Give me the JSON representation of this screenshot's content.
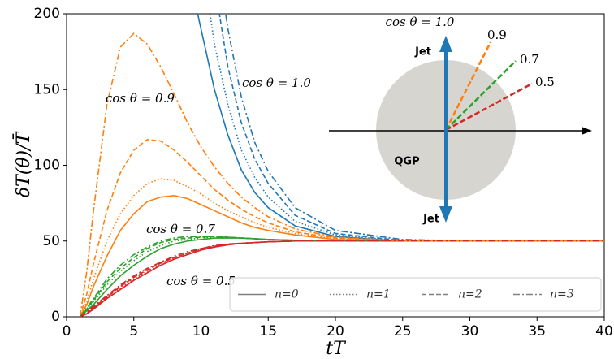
{
  "chart_data": {
    "type": "line",
    "xlabel": "tT",
    "ylabel": "δT(θ)/T̄",
    "xlim": [
      0,
      40
    ],
    "xticks": [
      0,
      5,
      10,
      15,
      20,
      25,
      30,
      35,
      40
    ],
    "ylim": [
      0,
      200
    ],
    "yticks": [
      0,
      50,
      100,
      150,
      200
    ],
    "legend_loc": "lower right",
    "x": [
      1,
      1.5,
      2,
      3,
      4,
      5,
      6,
      7,
      8,
      9,
      10,
      11,
      12,
      13,
      14,
      15,
      17,
      20,
      25,
      30,
      35,
      40
    ],
    "groups": [
      {
        "label": "cos θ = 1.0",
        "color": "#1f77b4"
      },
      {
        "label": "cos θ = 0.9",
        "color": "#ff7f0e"
      },
      {
        "label": "cos θ = 0.7",
        "color": "#2ca02c"
      },
      {
        "label": "cos θ = 0.5",
        "color": "#d62728"
      }
    ],
    "series": [
      {
        "name": "n=0",
        "color": "#808080",
        "dash": "solid",
        "curves": [
          [
            null,
            null,
            null,
            null,
            null,
            null,
            null,
            null,
            null,
            230,
            190,
            150,
            120,
            97,
            82,
            72,
            60,
            53,
            50,
            50,
            50,
            50
          ],
          [
            0,
            8,
            20,
            40,
            57,
            68,
            76,
            79,
            80,
            78,
            74,
            70,
            66,
            62,
            59,
            57,
            54,
            51,
            50,
            50,
            50,
            50
          ],
          [
            0,
            4,
            8,
            18,
            27,
            34,
            40,
            45,
            48,
            50,
            51,
            52,
            52,
            52,
            51.5,
            51,
            50.5,
            50,
            50,
            50,
            50,
            50
          ],
          [
            0,
            2,
            5,
            12,
            18,
            24,
            29,
            34,
            38,
            41,
            44,
            46,
            47.5,
            48.5,
            49,
            49.5,
            50,
            50,
            50,
            50,
            50,
            50
          ]
        ]
      },
      {
        "name": "n=1",
        "color": "#808080",
        "dash": "dotted",
        "curves": [
          [
            null,
            null,
            null,
            null,
            null,
            null,
            null,
            null,
            null,
            null,
            240,
            180,
            140,
            110,
            92,
            79,
            63,
            54,
            50,
            50,
            50,
            50
          ],
          [
            0,
            10,
            25,
            50,
            68,
            80,
            88,
            91,
            90,
            86,
            81,
            75,
            70,
            66,
            62,
            59,
            55,
            51.5,
            50,
            50,
            50,
            50
          ],
          [
            0,
            5,
            10,
            21,
            30,
            37,
            43,
            47,
            50,
            51,
            52,
            52.5,
            52.5,
            52,
            51.5,
            51,
            50.5,
            50,
            50,
            50,
            50,
            50
          ],
          [
            0,
            2,
            6,
            13,
            19,
            25,
            30,
            35,
            39,
            42,
            44.5,
            46.5,
            48,
            48.5,
            49,
            49.5,
            50,
            50,
            50,
            50,
            50,
            50
          ]
        ]
      },
      {
        "name": "n=2",
        "color": "#808080",
        "dash": "dashed",
        "curves": [
          [
            null,
            null,
            null,
            null,
            null,
            null,
            null,
            null,
            null,
            null,
            null,
            220,
            165,
            128,
            104,
            88,
            67,
            55,
            50.3,
            50,
            50,
            50
          ],
          [
            0,
            15,
            35,
            70,
            95,
            110,
            117,
            116,
            110,
            102,
            93,
            84,
            77,
            71,
            66,
            62,
            56,
            52,
            50,
            50,
            50,
            50
          ],
          [
            0,
            5,
            11,
            23,
            32,
            39,
            45,
            49,
            51,
            52,
            52.5,
            53,
            52.5,
            52,
            51.5,
            51,
            50.5,
            50,
            50,
            50,
            50,
            50
          ],
          [
            0,
            2,
            6,
            13,
            20,
            26,
            31,
            35.5,
            39,
            42,
            45,
            46.5,
            48,
            48.5,
            49,
            49.5,
            50,
            50,
            50,
            50,
            50,
            50
          ]
        ]
      },
      {
        "name": "n=3",
        "color": "#808080",
        "dash": "dashdot",
        "curves": [
          [
            null,
            null,
            null,
            null,
            null,
            null,
            null,
            null,
            null,
            null,
            null,
            250,
            190,
            145,
            115,
            96,
            72,
            57,
            51,
            50,
            50,
            50
          ],
          [
            0,
            30,
            70,
            140,
            178,
            187,
            180,
            165,
            147,
            128,
            112,
            99,
            88,
            79,
            72,
            66,
            58,
            52.5,
            50,
            50,
            50,
            50
          ],
          [
            0,
            6,
            12,
            25,
            34,
            41,
            46,
            50,
            52,
            53,
            53,
            53,
            52.5,
            52,
            51.5,
            51,
            50.5,
            50,
            50,
            50,
            50,
            50
          ],
          [
            0,
            3,
            7,
            14,
            21,
            27,
            32,
            36,
            40,
            43,
            45,
            47,
            48,
            48.5,
            49,
            49.5,
            50,
            50,
            50,
            50,
            50,
            50
          ]
        ]
      }
    ],
    "inset": {
      "top_label": "cos θ = 1.0",
      "labels": [
        "0.9",
        "0.7",
        "0.5"
      ],
      "jet_top": "Jet",
      "jet_bottom": "Jet",
      "medium": "QGP"
    }
  }
}
